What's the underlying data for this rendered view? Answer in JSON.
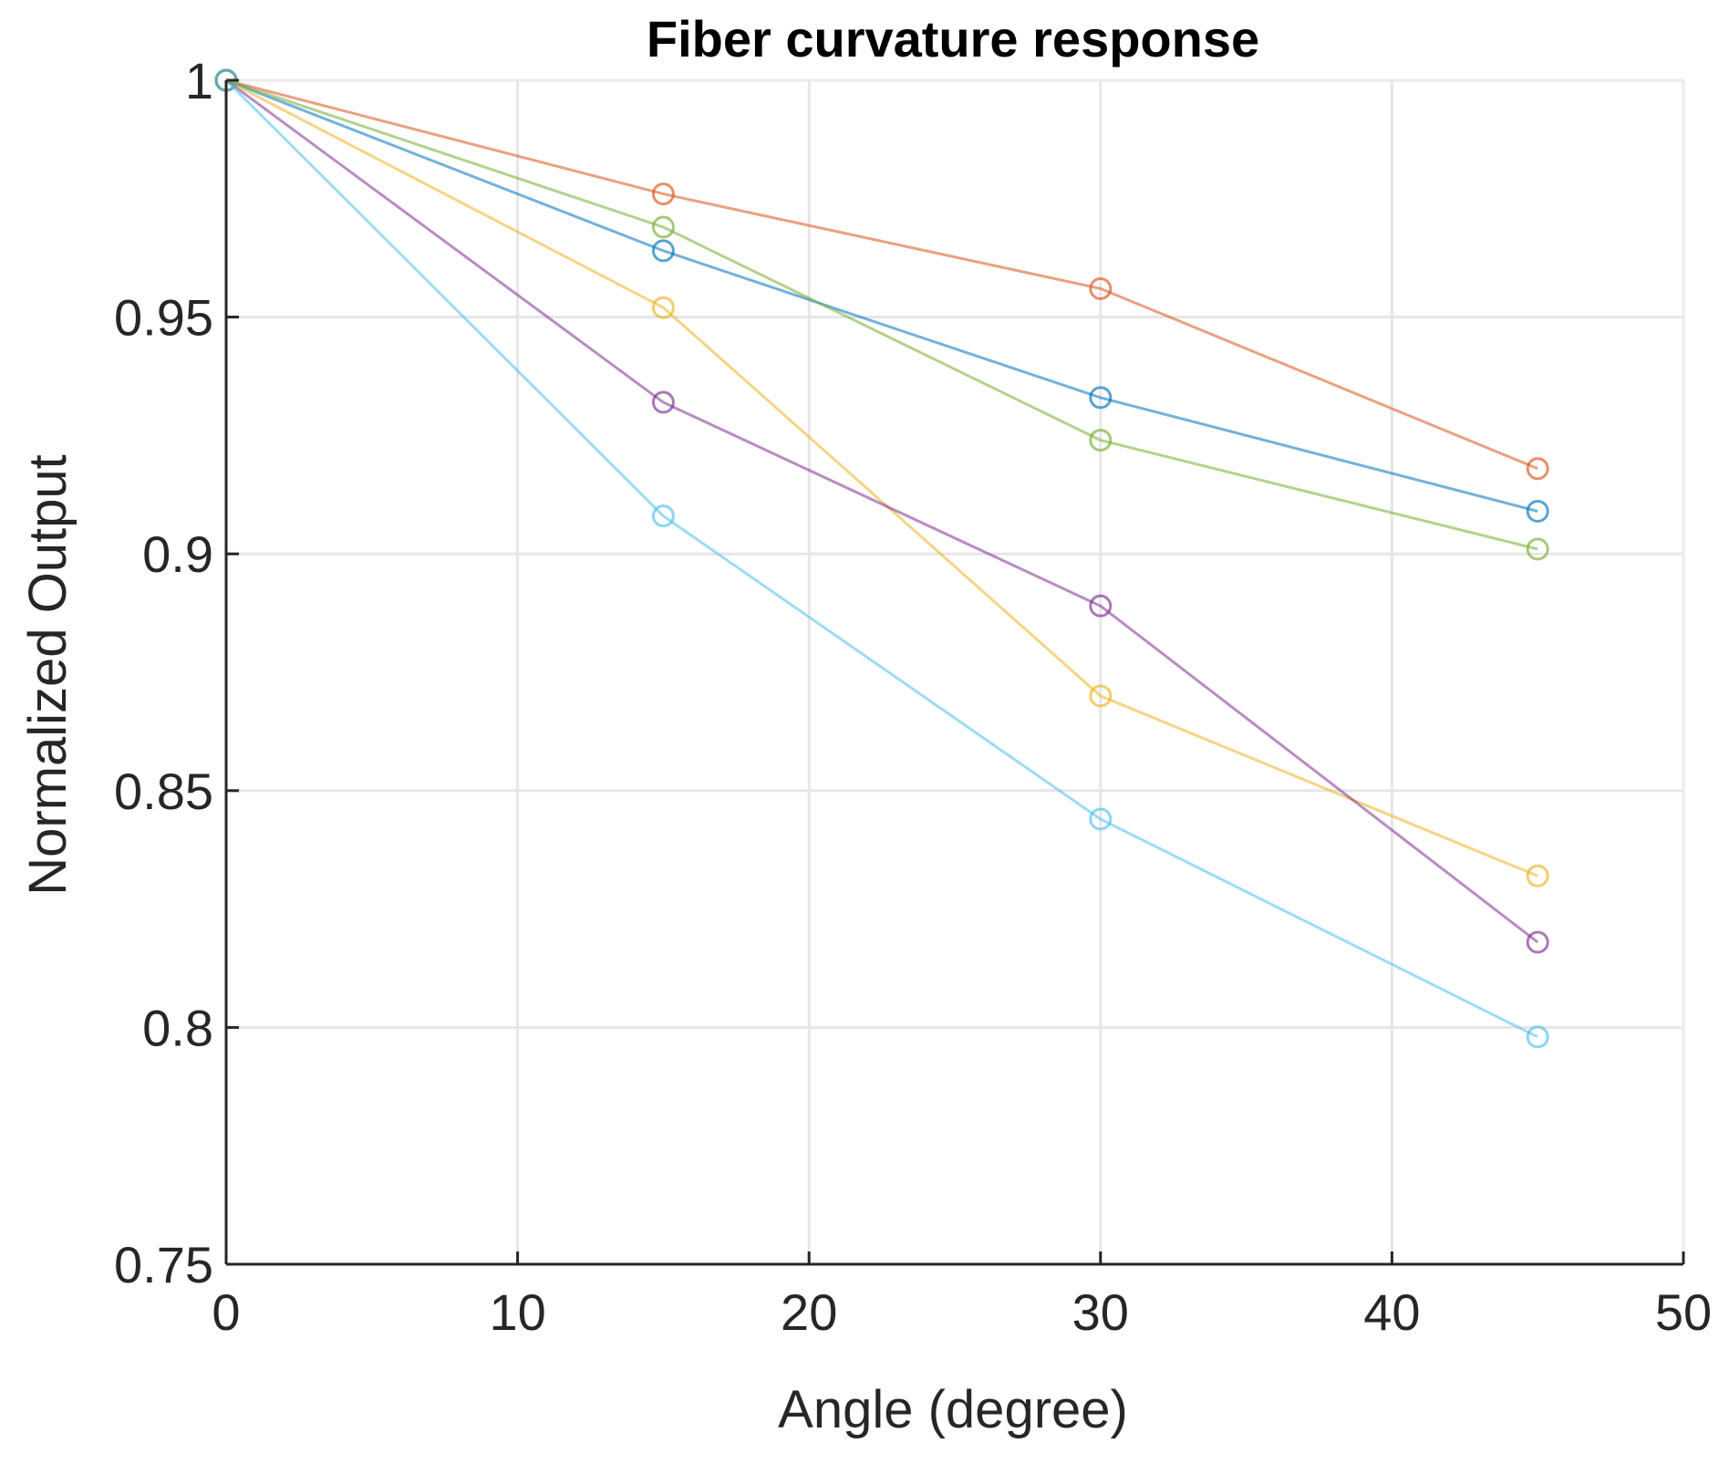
{
  "chart_data": {
    "type": "line",
    "title": "Fiber curvature response",
    "xlabel": "Angle (degree)",
    "ylabel": "Normalized Output",
    "xlim": [
      0,
      50
    ],
    "ylim": [
      0.75,
      1
    ],
    "xticks": [
      0,
      10,
      20,
      30,
      40,
      50
    ],
    "xtick_labels": [
      "0",
      "10",
      "20",
      "30",
      "40",
      "50"
    ],
    "yticks": [
      0.75,
      0.8,
      0.85,
      0.9,
      0.95,
      1
    ],
    "ytick_labels": [
      "0.75",
      "0.8",
      "0.85",
      "0.9",
      "0.95",
      "1"
    ],
    "grid": true,
    "marker": "circle-open",
    "x": [
      0,
      15,
      30,
      45
    ],
    "series": [
      {
        "color": "#0072BD",
        "values": [
          1,
          0.964,
          0.933,
          0.909
        ]
      },
      {
        "color": "#D95319",
        "values": [
          1,
          0.976,
          0.956,
          0.918
        ]
      },
      {
        "color": "#EDB120",
        "values": [
          1,
          0.952,
          0.87,
          0.832
        ]
      },
      {
        "color": "#7E2F8E",
        "values": [
          1,
          0.932,
          0.889,
          0.818
        ]
      },
      {
        "color": "#77AC30",
        "values": [
          1,
          0.969,
          0.924,
          0.901
        ]
      },
      {
        "color": "#4DBEEE",
        "values": [
          1,
          0.908,
          0.844,
          0.798
        ]
      }
    ]
  }
}
